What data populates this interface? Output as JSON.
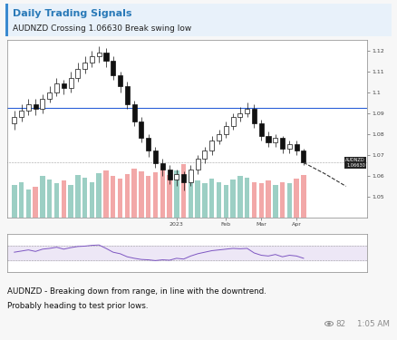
{
  "header": {
    "title": "Daily Trading Signals",
    "subtitle": "AUDNZD Crossing 1.06630 Break swing low"
  },
  "chart_data": [
    {
      "type": "candlestick",
      "categories": [
        null,
        null,
        null,
        null,
        null,
        null,
        null,
        null,
        null,
        null,
        null,
        null,
        null,
        null,
        null,
        null,
        null,
        null,
        null,
        null,
        null,
        null,
        null,
        "2023",
        null,
        null,
        null,
        null,
        null,
        null,
        "Feb",
        null,
        null,
        null,
        null,
        "Mar",
        null,
        null,
        null,
        null,
        "Apr",
        null
      ],
      "open": [
        1.085,
        1.088,
        1.091,
        1.094,
        1.092,
        1.097,
        1.1,
        1.104,
        1.102,
        1.107,
        1.111,
        1.114,
        1.117,
        1.119,
        1.115,
        1.108,
        1.103,
        1.094,
        1.086,
        1.078,
        1.072,
        1.066,
        1.063,
        1.058,
        1.061,
        1.057,
        1.063,
        1.068,
        1.072,
        1.077,
        1.08,
        1.084,
        1.088,
        1.09,
        1.092,
        1.085,
        1.079,
        1.076,
        1.078,
        1.073,
        1.075,
        1.072
      ],
      "high": [
        1.091,
        1.094,
        1.097,
        1.097,
        1.099,
        1.103,
        1.107,
        1.106,
        1.11,
        1.114,
        1.117,
        1.12,
        1.122,
        1.121,
        1.117,
        1.11,
        1.105,
        1.096,
        1.088,
        1.08,
        1.074,
        1.068,
        1.065,
        1.063,
        1.062,
        1.065,
        1.07,
        1.074,
        1.079,
        1.082,
        1.086,
        1.09,
        1.093,
        1.095,
        1.094,
        1.087,
        1.081,
        1.08,
        1.079,
        1.077,
        1.077,
        1.073
      ],
      "low": [
        1.082,
        1.086,
        1.089,
        1.089,
        1.09,
        1.095,
        1.098,
        1.099,
        1.1,
        1.105,
        1.109,
        1.112,
        1.114,
        1.112,
        1.106,
        1.1,
        1.092,
        1.084,
        1.076,
        1.069,
        1.064,
        1.06,
        1.056,
        1.055,
        1.053,
        1.055,
        1.061,
        1.066,
        1.07,
        1.075,
        1.078,
        1.082,
        1.086,
        1.088,
        1.083,
        1.077,
        1.074,
        1.074,
        1.071,
        1.071,
        1.07,
        1.065
      ],
      "close": [
        1.088,
        1.091,
        1.094,
        1.092,
        1.097,
        1.1,
        1.104,
        1.102,
        1.107,
        1.111,
        1.114,
        1.117,
        1.119,
        1.115,
        1.108,
        1.103,
        1.094,
        1.086,
        1.078,
        1.072,
        1.066,
        1.063,
        1.058,
        1.061,
        1.057,
        1.063,
        1.068,
        1.072,
        1.077,
        1.08,
        1.084,
        1.088,
        1.09,
        1.092,
        1.085,
        1.079,
        1.076,
        1.078,
        1.073,
        1.075,
        1.072,
        1.0663
      ],
      "xlim": [
        -1,
        50
      ],
      "ylim": [
        1.04,
        1.125
      ],
      "yticks": [
        1.05,
        1.06,
        1.07,
        1.08,
        1.09,
        1.1,
        1.11,
        1.12
      ],
      "levels": [
        1.0925
      ],
      "last_price": {
        "text": "AUDNZD",
        "value": 1.0663,
        "label": "1.06630"
      },
      "projection": {
        "x": [
          41,
          44,
          47
        ],
        "values": [
          1.0663,
          1.061,
          1.055
        ]
      }
    },
    {
      "type": "bar",
      "values": [
        55,
        60,
        48,
        52,
        70,
        65,
        58,
        62,
        55,
        72,
        68,
        60,
        75,
        80,
        70,
        66,
        74,
        82,
        78,
        70,
        76,
        88,
        72,
        80,
        90,
        70,
        62,
        58,
        66,
        60,
        55,
        64,
        70,
        68,
        60,
        58,
        62,
        55,
        60,
        58,
        66,
        72
      ],
      "xlim": [
        -1,
        50
      ],
      "ylim": [
        0,
        300
      ],
      "tick_labels": false
    },
    {
      "type": "line",
      "values": [
        52,
        55,
        58,
        54,
        60,
        62,
        65,
        60,
        64,
        67,
        68,
        70,
        71,
        62,
        52,
        48,
        40,
        36,
        33,
        32,
        30,
        32,
        31,
        36,
        34,
        42,
        48,
        52,
        56,
        58,
        60,
        62,
        61,
        62,
        50,
        44,
        42,
        46,
        40,
        44,
        42,
        36
      ],
      "xlim": [
        -1,
        50
      ],
      "ylim": [
        0,
        100
      ],
      "band": [
        30,
        70
      ],
      "tick_labels": false
    }
  ],
  "caption": [
    "AUDNZD - Breaking down from range, in line with the downtrend.",
    "Probably heading to test prior lows."
  ],
  "views": 82,
  "time": "1:05 AM"
}
